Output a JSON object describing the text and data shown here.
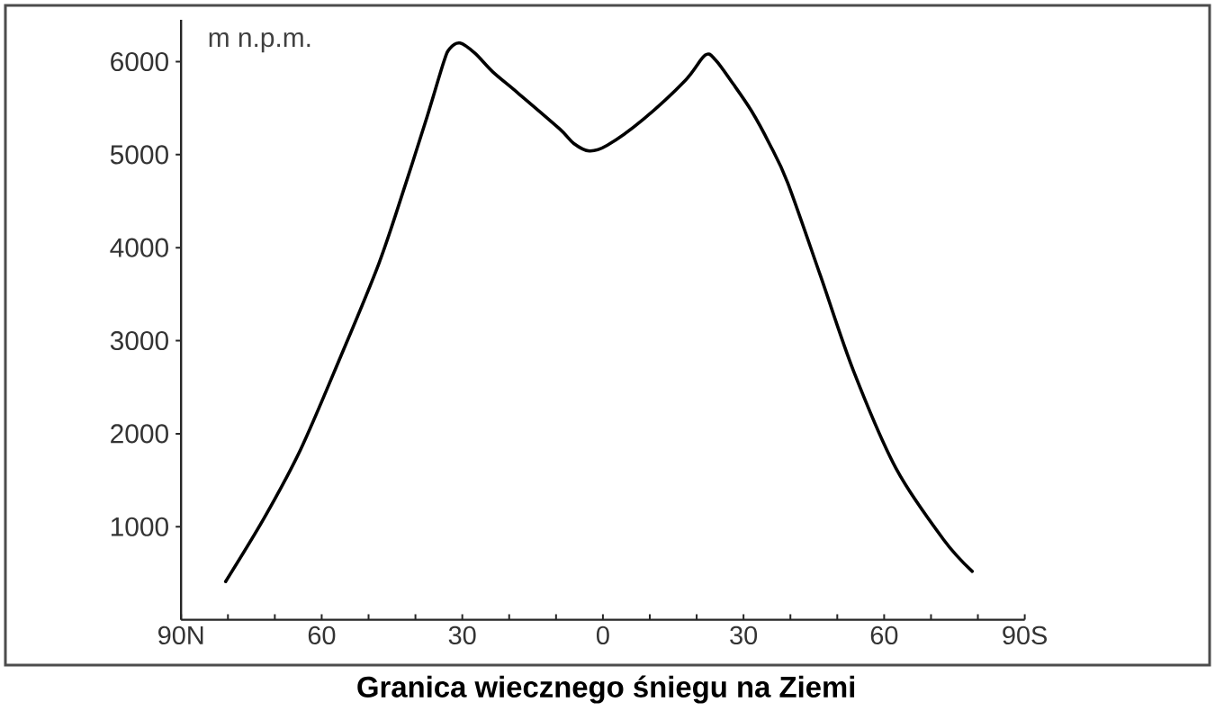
{
  "chart_data": {
    "type": "line",
    "title": "Granica wiecznego śniegu na Ziemi",
    "ylabel": "m n.p.m.",
    "x": [
      80.5,
      72.2,
      64.5,
      56.2,
      47.8,
      42.0,
      37.5,
      34.0,
      32.7,
      30.5,
      27.3,
      23.5,
      18.3,
      9.3,
      6.2,
      2.9,
      -0.9,
      -8.6,
      -17.6,
      -21.8,
      -24.0,
      -27.8,
      -31.7,
      -35.5,
      -39.4,
      -46.4,
      -53.5,
      -62.5,
      -72.7,
      -78.8
    ],
    "series": [
      {
        "color": "#000000",
        "values": [
          410,
          1100,
          1830,
          2800,
          3830,
          4700,
          5410,
          5990,
          6140,
          6200,
          6090,
          5890,
          5670,
          5280,
          5120,
          5040,
          5100,
          5380,
          5800,
          6070,
          6020,
          5760,
          5470,
          5120,
          4700,
          3700,
          2670,
          1630,
          860,
          520
        ]
      }
    ],
    "xlim": [
      90,
      -90
    ],
    "ylim": [
      0,
      6450
    ],
    "xticks": [
      {
        "value": 90,
        "label": "90N"
      },
      {
        "value": 80,
        "label": null
      },
      {
        "value": 70,
        "label": null
      },
      60,
      {
        "value": 50,
        "label": null
      },
      {
        "value": 40,
        "label": null
      },
      30,
      {
        "value": 20,
        "label": null
      },
      {
        "value": 10,
        "label": null
      },
      0,
      {
        "value": -10,
        "label": null
      },
      {
        "value": -20,
        "label": null
      },
      {
        "value": -30,
        "label": "30"
      },
      {
        "value": -40,
        "label": null
      },
      {
        "value": -50,
        "label": null
      },
      {
        "value": -60,
        "label": "60"
      },
      {
        "value": -70,
        "label": null
      },
      {
        "value": -80,
        "label": null
      },
      {
        "value": -90,
        "label": "90S"
      }
    ],
    "yticks": [
      1000,
      2000,
      3000,
      4000,
      5000,
      6000
    ],
    "marker": "none",
    "line_style": "solid"
  }
}
